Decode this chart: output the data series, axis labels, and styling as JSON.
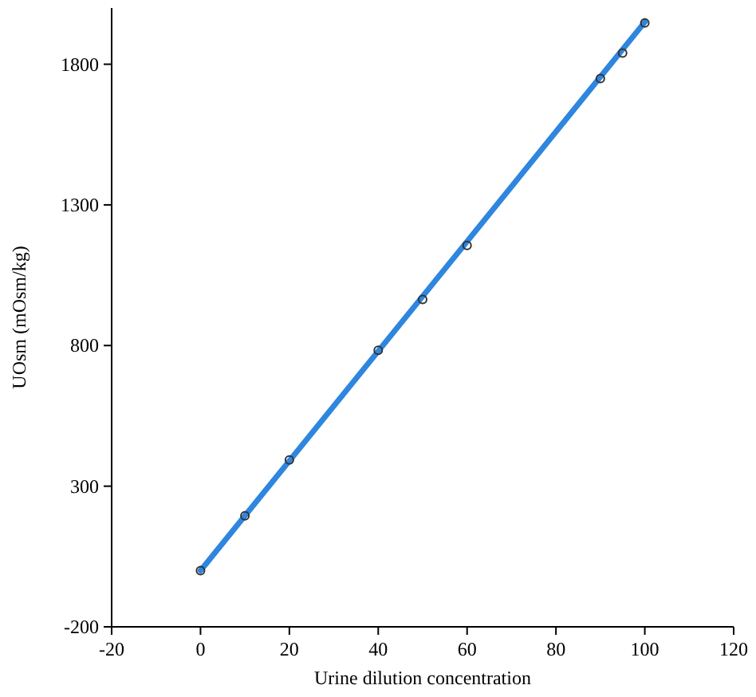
{
  "chart_data": {
    "type": "scatter",
    "xlabel": "Urine dilution concentration",
    "ylabel": "UOsm (mOsm/kg)",
    "xlim": [
      -20,
      120
    ],
    "xticks": [
      -20,
      0,
      20,
      40,
      60,
      80,
      100,
      120
    ],
    "ylim": [
      -200,
      2000
    ],
    "yticks": [
      -200,
      300,
      800,
      1300,
      1800
    ],
    "grid": false,
    "series": [
      {
        "type": "line",
        "color": "#2e86de",
        "x": [
          0,
          100
        ],
        "values": [
          0,
          1950
        ]
      },
      {
        "color": "#333333",
        "x": [
          0,
          10,
          20,
          40,
          50,
          60,
          90,
          95,
          100
        ],
        "values": [
          0,
          195,
          393,
          783,
          964,
          1156,
          1749,
          1840,
          1947
        ],
        "marker": "circle"
      }
    ]
  }
}
